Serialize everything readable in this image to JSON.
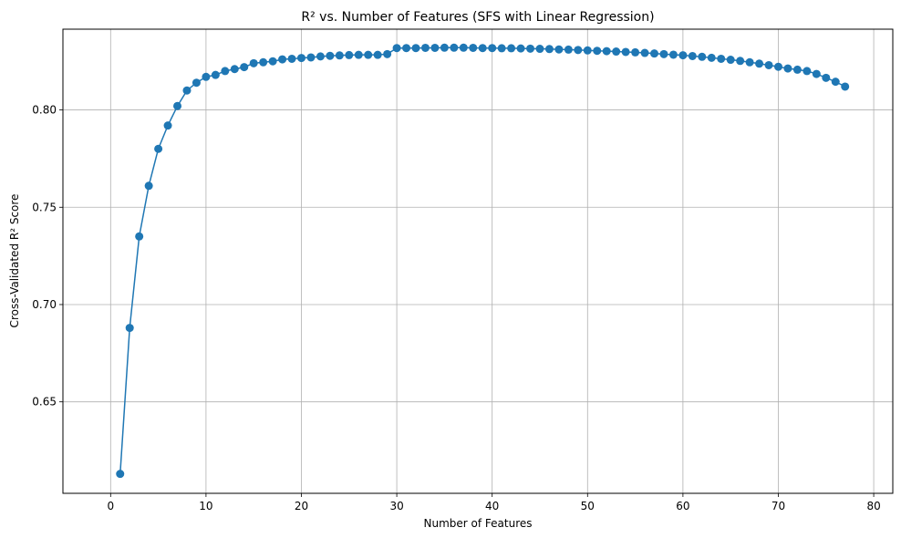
{
  "chart_data": {
    "type": "line",
    "title": "R² vs. Number of Features (SFS with Linear Regression)",
    "xlabel": "Number of Features",
    "ylabel": "Cross-Validated R² Score",
    "xlim": [
      -5,
      82
    ],
    "ylim": [
      0.603,
      0.8415
    ],
    "xticks": [
      0,
      10,
      20,
      30,
      40,
      50,
      60,
      70,
      80
    ],
    "xtick_labels": [
      "0",
      "10",
      "20",
      "30",
      "40",
      "50",
      "60",
      "70",
      "80"
    ],
    "yticks": [
      0.65,
      0.7,
      0.75,
      0.8
    ],
    "ytick_labels": [
      "0.65",
      "0.70",
      "0.75",
      "0.80"
    ],
    "grid": true,
    "marker": "circle",
    "color": "#1f77b4",
    "x": [
      1,
      2,
      3,
      4,
      5,
      6,
      7,
      8,
      9,
      10,
      11,
      12,
      13,
      14,
      15,
      16,
      17,
      18,
      19,
      20,
      21,
      22,
      23,
      24,
      25,
      26,
      27,
      28,
      29,
      30,
      31,
      32,
      33,
      34,
      35,
      36,
      37,
      38,
      39,
      40,
      41,
      42,
      43,
      44,
      45,
      46,
      47,
      48,
      49,
      50,
      51,
      52,
      53,
      54,
      55,
      56,
      57,
      58,
      59,
      60,
      61,
      62,
      63,
      64,
      65,
      66,
      67,
      68,
      69,
      70,
      71,
      72,
      73,
      74,
      75,
      76,
      77
    ],
    "y": [
      0.613,
      0.688,
      0.735,
      0.761,
      0.78,
      0.792,
      0.802,
      0.81,
      0.814,
      0.817,
      0.818,
      0.82,
      0.821,
      0.822,
      0.824,
      0.8245,
      0.825,
      0.826,
      0.8263,
      0.8267,
      0.827,
      0.8275,
      0.8278,
      0.828,
      0.8282,
      0.8283,
      0.8283,
      0.8283,
      0.8287,
      0.8318,
      0.8318,
      0.8318,
      0.8319,
      0.8319,
      0.832,
      0.832,
      0.832,
      0.8319,
      0.8318,
      0.8318,
      0.8317,
      0.8317,
      0.8316,
      0.8315,
      0.8314,
      0.8313,
      0.8311,
      0.831,
      0.8308,
      0.8306,
      0.8304,
      0.8302,
      0.83,
      0.8298,
      0.8296,
      0.8293,
      0.829,
      0.8287,
      0.8284,
      0.8281,
      0.8277,
      0.8273,
      0.8268,
      0.8263,
      0.8258,
      0.8252,
      0.8245,
      0.8238,
      0.823,
      0.8222,
      0.8213,
      0.8207,
      0.82,
      0.8185,
      0.8165,
      0.8145,
      0.812
    ]
  }
}
